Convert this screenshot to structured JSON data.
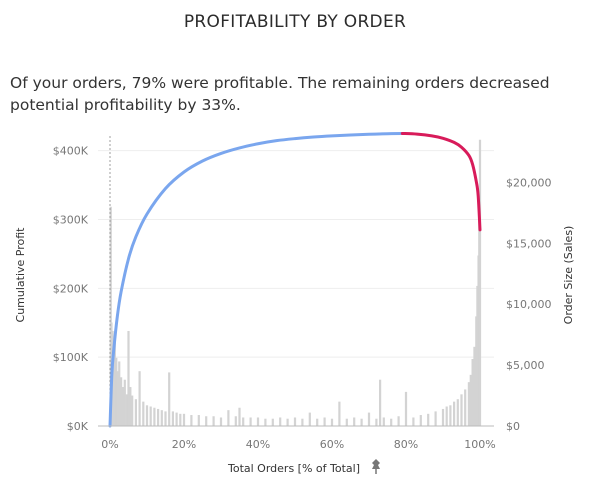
{
  "title": "PROFITABILITY BY ORDER",
  "subtitle": "Of your orders, 79% were profitable.  The remaining orders decreased potential profitability by 33%.",
  "colors": {
    "profit_line": "#7aa6ee",
    "loss_line": "#d81b5a",
    "bars": "#d3d3d3",
    "axis": "#999999"
  },
  "chart_data": {
    "type": "line",
    "xlabel": "Total Orders [% of Total]",
    "xlabel_icon": "pin-icon",
    "ylabel_left": "Cumulative Profit",
    "ylabel_right": "Order Size (Sales)",
    "xlim": [
      0,
      100
    ],
    "ylim_left": [
      0,
      430000
    ],
    "ylim_right": [
      0,
      24300
    ],
    "x_ticks": [
      "0%",
      "20%",
      "40%",
      "60%",
      "80%",
      "100%"
    ],
    "y_left_ticks": [
      "$0K",
      "$100K",
      "$200K",
      "$300K",
      "$400K"
    ],
    "y_right_ticks": [
      "$0",
      "$5,000",
      "$10,000",
      "$15,000",
      "$20,000"
    ],
    "series": [
      {
        "role": "cumulative profit (profitable orders)",
        "x": [
          0,
          0.5,
          1,
          2,
          3,
          5,
          7,
          10,
          15,
          20,
          25,
          30,
          35,
          40,
          45,
          50,
          55,
          60,
          65,
          70,
          75,
          79
        ],
        "y": [
          0,
          75000,
          110000,
          160000,
          195000,
          243000,
          275000,
          308000,
          345000,
          369000,
          385000,
          396000,
          404000,
          410000,
          414500,
          417500,
          419800,
          421500,
          422800,
          423800,
          424600,
          425000
        ]
      },
      {
        "role": "cumulative profit (unprofitable orders)",
        "x": [
          79,
          83,
          87,
          90,
          93,
          95,
          97,
          98,
          99,
          99.5,
          100
        ],
        "y": [
          425000,
          424000,
          421500,
          418000,
          412000,
          405000,
          393000,
          380000,
          355000,
          335000,
          285000
        ]
      },
      {
        "role": "order size bars",
        "x": [
          0.2,
          0.4,
          0.7,
          1,
          1.3,
          1.7,
          2,
          2.5,
          3,
          3.5,
          4,
          4.5,
          5,
          5.5,
          6,
          7,
          8,
          9,
          10,
          11,
          12,
          13,
          14,
          15,
          16,
          17,
          18,
          19,
          20,
          22,
          24,
          26,
          28,
          30,
          32,
          34,
          35,
          36,
          38,
          40,
          42,
          44,
          46,
          48,
          50,
          52,
          54,
          56,
          58,
          60,
          62,
          64,
          66,
          68,
          70,
          72,
          73,
          74,
          76,
          78,
          80,
          82,
          84,
          86,
          88,
          90,
          91,
          92,
          93,
          94,
          95,
          96,
          97,
          97.5,
          98,
          98.5,
          99,
          99.3,
          99.6,
          99.8,
          100
        ],
        "y": [
          18000,
          8500,
          7800,
          5000,
          7400,
          5600,
          4500,
          5300,
          4000,
          3200,
          3800,
          2600,
          7800,
          3200,
          2500,
          2200,
          4500,
          2000,
          1700,
          1600,
          1500,
          1400,
          1300,
          1200,
          4400,
          1200,
          1100,
          1000,
          1000,
          900,
          900,
          800,
          800,
          700,
          1300,
          800,
          1500,
          700,
          700,
          700,
          600,
          600,
          700,
          600,
          700,
          600,
          1100,
          600,
          700,
          600,
          2000,
          600,
          700,
          600,
          1100,
          600,
          3800,
          700,
          600,
          800,
          2800,
          700,
          900,
          1000,
          1200,
          1400,
          1600,
          1700,
          2000,
          2200,
          2600,
          3000,
          3600,
          4200,
          5500,
          6500,
          9000,
          11500,
          14000,
          19000,
          23500
        ]
      }
    ]
  }
}
